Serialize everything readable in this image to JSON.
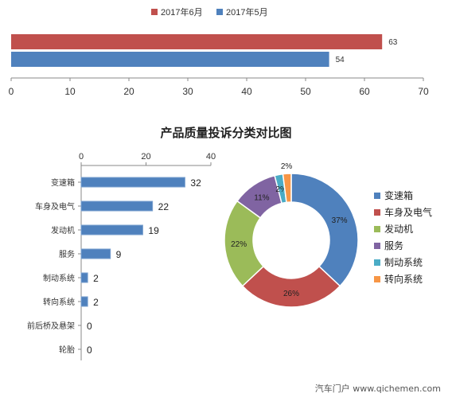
{
  "colors": {
    "blue": "#4f81bd",
    "red": "#c0504d",
    "green": "#9bbb59",
    "purple": "#8064a2",
    "teal": "#4bacc6",
    "orange": "#f79646",
    "axis": "#888888"
  },
  "watermark": "汽车门户 www.qichemen.com",
  "chart_data": [
    {
      "type": "bar",
      "orientation": "horizontal",
      "title": "",
      "legend_position": "top",
      "series": [
        {
          "name": "2017年6月",
          "values": [
            63
          ],
          "color": "#c0504d"
        },
        {
          "name": "2017年5月",
          "values": [
            54
          ],
          "color": "#4f81bd"
        }
      ],
      "xlim": [
        0,
        70
      ],
      "x_ticks": [
        0,
        10,
        20,
        30,
        40,
        50,
        60,
        70
      ],
      "grid": false
    },
    {
      "type": "bar",
      "orientation": "horizontal",
      "title": "产品质量投诉分类对比图",
      "categories": [
        "变速箱",
        "车身及电气",
        "发动机",
        "服务",
        "制动系统",
        "转向系统",
        "前后桥及悬架",
        "轮胎"
      ],
      "values": [
        32,
        22,
        19,
        9,
        2,
        2,
        0,
        0
      ],
      "xlim": [
        0,
        40
      ],
      "x_ticks": [
        0,
        20,
        40
      ],
      "axis_position": "top",
      "data_labels": true,
      "grid": false
    },
    {
      "type": "pie",
      "style": "donut",
      "legend_position": "right",
      "labels": [
        "变速箱",
        "车身及电气",
        "发动机",
        "服务",
        "制动系统",
        "转向系统"
      ],
      "values": [
        37,
        26,
        22,
        11,
        2,
        2
      ],
      "value_labels": [
        "37%",
        "26%",
        "22%",
        "11%",
        "2%",
        "2%"
      ],
      "colors": [
        "#4f81bd",
        "#c0504d",
        "#9bbb59",
        "#8064a2",
        "#4bacc6",
        "#f79646"
      ]
    }
  ]
}
